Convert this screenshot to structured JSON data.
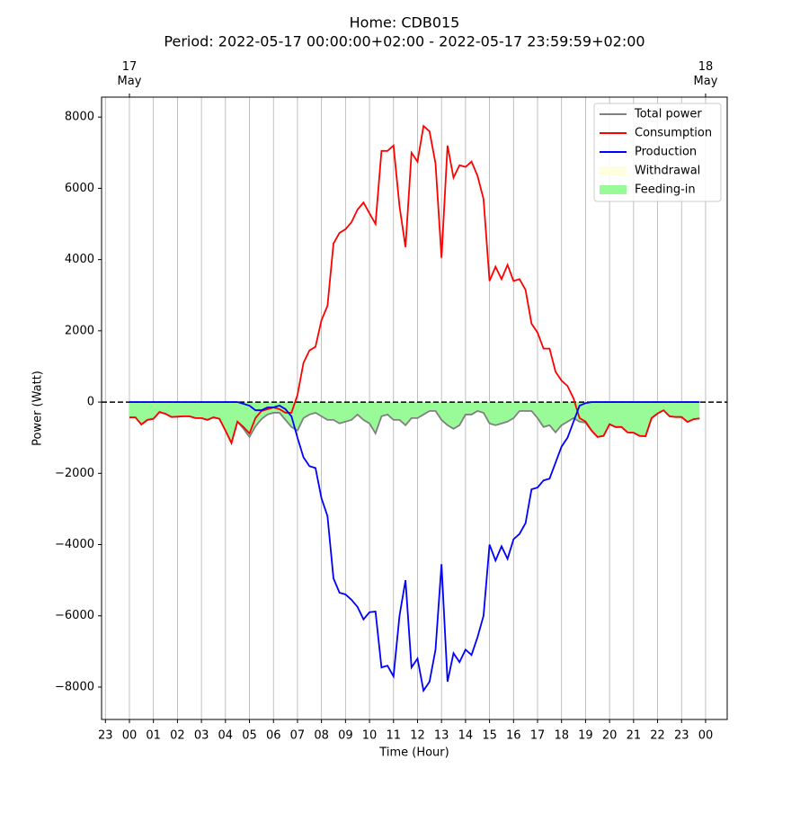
{
  "chart_data": {
    "type": "line",
    "title": "Home: CDB015",
    "subtitle": "Period: 2022-05-17 00:00:00+02:00 - 2022-05-17 23:59:59+02:00",
    "x_label": "Time (Hour)",
    "y_label": "Power (Watt)",
    "x": [
      0,
      0.25,
      0.5,
      0.75,
      1,
      1.25,
      1.5,
      1.75,
      2,
      2.25,
      2.5,
      2.75,
      3,
      3.25,
      3.5,
      3.75,
      4,
      4.25,
      4.5,
      4.75,
      5,
      5.25,
      5.5,
      5.75,
      6,
      6.25,
      6.5,
      6.75,
      7,
      7.25,
      7.5,
      7.75,
      8,
      8.25,
      8.5,
      8.75,
      9,
      9.25,
      9.5,
      9.75,
      10,
      10.25,
      10.5,
      10.75,
      11,
      11.25,
      11.5,
      11.75,
      12,
      12.25,
      12.5,
      12.75,
      13,
      13.25,
      13.5,
      13.75,
      14,
      14.25,
      14.5,
      14.75,
      15,
      15.25,
      15.5,
      15.75,
      16,
      16.25,
      16.5,
      16.75,
      17,
      17.25,
      17.5,
      17.75,
      18,
      18.25,
      18.5,
      18.75,
      19,
      19.25,
      19.5,
      19.75,
      20,
      20.25,
      20.5,
      20.75,
      21,
      21.25,
      21.5,
      21.75,
      22,
      22.25,
      22.5,
      22.75,
      23,
      23.25,
      23.5,
      23.75
    ],
    "series": [
      {
        "name": "Total power",
        "color": "#808080",
        "values": [
          -430,
          -430,
          -630,
          -500,
          -470,
          -280,
          -330,
          -420,
          -410,
          -400,
          -400,
          -450,
          -450,
          -500,
          -430,
          -470,
          -800,
          -1150,
          -550,
          -750,
          -980,
          -680,
          -480,
          -350,
          -300,
          -300,
          -500,
          -700,
          -800,
          -450,
          -350,
          -300,
          -400,
          -500,
          -500,
          -600,
          -550,
          -500,
          -350,
          -500,
          -600,
          -880,
          -400,
          -350,
          -500,
          -500,
          -650,
          -450,
          -450,
          -350,
          -250,
          -250,
          -500,
          -650,
          -750,
          -650,
          -350,
          -350,
          -250,
          -300,
          -600,
          -650,
          -600,
          -550,
          -450,
          -250,
          -250,
          -250,
          -450,
          -700,
          -650,
          -850,
          -650,
          -550,
          -450,
          -550,
          -580,
          -800,
          -980,
          -950,
          -620,
          -700,
          -700,
          -850,
          -860,
          -950,
          -960,
          -450,
          -320,
          -230,
          -400,
          -420,
          -420,
          -560,
          -480,
          -460
        ]
      },
      {
        "name": "Consumption",
        "color": "#ff0000",
        "values": [
          -430,
          -430,
          -630,
          -500,
          -470,
          -280,
          -330,
          -420,
          -410,
          -400,
          -400,
          -450,
          -450,
          -500,
          -430,
          -470,
          -800,
          -1150,
          -550,
          -700,
          -880,
          -450,
          -250,
          -200,
          -150,
          -200,
          -300,
          -300,
          200,
          1100,
          1450,
          1550,
          2300,
          2700,
          4450,
          4750,
          4850,
          5050,
          5400,
          5600,
          5300,
          5000,
          7050,
          7050,
          7200,
          5500,
          4350,
          7000,
          6750,
          7750,
          7600,
          6700,
          4050,
          7200,
          6300,
          6650,
          6600,
          6750,
          6350,
          5700,
          3400,
          3800,
          3450,
          3850,
          3400,
          3450,
          3150,
          2200,
          1950,
          1500,
          1500,
          850,
          600,
          450,
          100,
          -450,
          -550,
          -800,
          -980,
          -950,
          -620,
          -700,
          -700,
          -850,
          -860,
          -950,
          -960,
          -450,
          -320,
          -230,
          -400,
          -420,
          -420,
          -560,
          -480,
          -460
        ]
      },
      {
        "name": "Production",
        "color": "#0000ff",
        "values": [
          0,
          0,
          0,
          0,
          0,
          0,
          0,
          0,
          0,
          0,
          0,
          0,
          0,
          0,
          0,
          0,
          0,
          0,
          0,
          -50,
          -100,
          -230,
          -230,
          -150,
          -150,
          -100,
          -200,
          -400,
          -1000,
          -1550,
          -1800,
          -1850,
          -2700,
          -3200,
          -4950,
          -5350,
          -5400,
          -5550,
          -5750,
          -6100,
          -5900,
          -5880,
          -7450,
          -7400,
          -7700,
          -6000,
          -5000,
          -7450,
          -7200,
          -8100,
          -7850,
          -6950,
          -4550,
          -7850,
          -7050,
          -7300,
          -6950,
          -7100,
          -6600,
          -6000,
          -4000,
          -4450,
          -4050,
          -4400,
          -3850,
          -3700,
          -3400,
          -2450,
          -2400,
          -2200,
          -2150,
          -1700,
          -1250,
          -1000,
          -550,
          -100,
          -30,
          0,
          0,
          0,
          0,
          0,
          0,
          0,
          0,
          0,
          0,
          0,
          0,
          0,
          0,
          0,
          0,
          0,
          0,
          0
        ]
      }
    ],
    "fills": [
      {
        "name": "Withdrawal",
        "color": "#ffffe0"
      },
      {
        "name": "Feeding-in",
        "color": "#98fb98"
      }
    ],
    "xlim": [
      -1.16,
      24.9
    ],
    "ylim": [
      -8910,
      8560
    ],
    "xticks": [
      {
        "value": -1,
        "label": "23"
      },
      {
        "value": 0,
        "label": "00"
      },
      {
        "value": 1,
        "label": "01"
      },
      {
        "value": 2,
        "label": "02"
      },
      {
        "value": 3,
        "label": "03"
      },
      {
        "value": 4,
        "label": "04"
      },
      {
        "value": 5,
        "label": "05"
      },
      {
        "value": 6,
        "label": "06"
      },
      {
        "value": 7,
        "label": "07"
      },
      {
        "value": 8,
        "label": "08"
      },
      {
        "value": 9,
        "label": "09"
      },
      10,
      11,
      12,
      13,
      14,
      15,
      16,
      17,
      18,
      19,
      20,
      21,
      22,
      23,
      {
        "value": 24,
        "label": "00"
      }
    ],
    "top_xticks": [
      {
        "value": 0,
        "label": "17\nMay"
      },
      {
        "value": 24,
        "label": "18\nMay"
      }
    ],
    "yticks": [
      {
        "value": -8000,
        "label": "−8000"
      },
      {
        "value": -6000,
        "label": "−6000"
      },
      {
        "value": -4000,
        "label": "−4000"
      },
      {
        "value": -2000,
        "label": "−2000"
      },
      0,
      2000,
      4000,
      6000,
      8000
    ],
    "grid": true,
    "legend": "upper right"
  }
}
